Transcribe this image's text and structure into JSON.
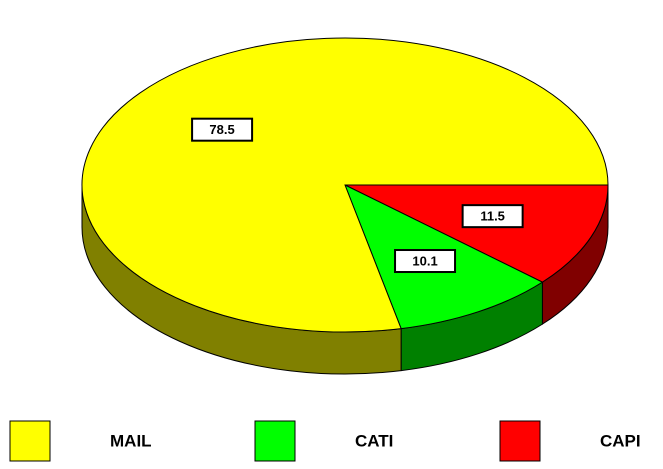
{
  "chart_data": {
    "type": "pie3d",
    "categories": [
      "MAIL",
      "CATI",
      "CAPI"
    ],
    "values": [
      78.5,
      10.1,
      11.5
    ],
    "colors": [
      "#ffff00",
      "#00ff00",
      "#ff0000"
    ]
  }
}
